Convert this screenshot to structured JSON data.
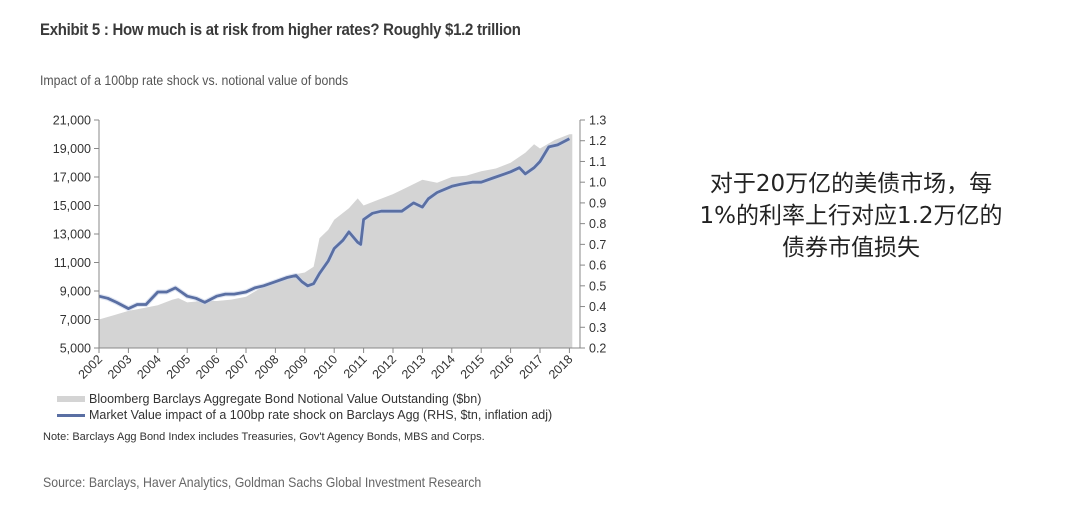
{
  "header": {
    "title": "Exhibit 5 : How much is at risk from higher rates? Roughly $1.2 trillion",
    "subtitle": "Impact of a 100bp rate shock vs. notional value of bonds"
  },
  "legend": {
    "area_label": "Bloomberg Barclays Aggregate Bond Notional Value Outstanding ($bn)",
    "line_label": "Market Value impact of a 100bp rate shock on Barclays Agg (RHS, $tn, inflation adj)"
  },
  "note": "Note: Barclays Agg Bond Index includes Treasuries, Gov't Agency Bonds, MBS and Corps.",
  "source": "Source: Barclays, Haver Analytics, Goldman Sachs Global Investment Research",
  "annotation": {
    "lines": [
      "对于20万亿的美债市场，每",
      "1%的利率上行对应1.2万亿的",
      "债券市值损失"
    ]
  },
  "colors": {
    "area": "#d4d4d4",
    "line": "#5a6fa3",
    "axis": "#888888"
  },
  "chart_data": {
    "type": "area+line",
    "title": "Exhibit 5 : How much is at risk from higher rates? Roughly $1.2 trillion",
    "subtitle": "Impact of a 100bp rate shock vs. notional value of bonds",
    "xlabel": "",
    "x_tick_labels": [
      "2002",
      "2003",
      "2004",
      "2005",
      "2006",
      "2007",
      "2008",
      "2009",
      "2010",
      "2011",
      "2012",
      "2013",
      "2014",
      "2015",
      "2016",
      "2017",
      "2018"
    ],
    "left_axis": {
      "label": "$bn",
      "ylim": [
        5000,
        21000
      ],
      "ticks": [
        5000,
        7000,
        9000,
        11000,
        13000,
        15000,
        17000,
        19000,
        21000
      ],
      "tick_labels": [
        "5,000",
        "7,000",
        "9,000",
        "11,000",
        "13,000",
        "15,000",
        "17,000",
        "19,000",
        "21,000"
      ]
    },
    "right_axis": {
      "label": "$tn",
      "ylim": [
        0.2,
        1.3
      ],
      "ticks": [
        0.2,
        0.3,
        0.4,
        0.5,
        0.6,
        0.7,
        0.8,
        0.9,
        1.0,
        1.1,
        1.2,
        1.3
      ],
      "tick_labels": [
        "0.2",
        "0.3",
        "0.4",
        "0.5",
        "0.6",
        "0.7",
        "0.8",
        "0.9",
        "1.0",
        "1.1",
        "1.2",
        "1.3"
      ]
    },
    "grid": false,
    "legend_position": "bottom",
    "series": [
      {
        "name": "Bloomberg Barclays Aggregate Bond Notional Value Outstanding ($bn)",
        "type": "area",
        "axis": "left",
        "x": [
          2002,
          2002.5,
          2003,
          2003.5,
          2004,
          2004.5,
          2004.7,
          2005,
          2005.5,
          2006,
          2006.5,
          2007,
          2007.5,
          2008,
          2008.5,
          2009,
          2009.3,
          2009.5,
          2009.8,
          2010,
          2010.5,
          2010.8,
          2011,
          2011.5,
          2012,
          2012.5,
          2013,
          2013.5,
          2014,
          2014.5,
          2015,
          2015.5,
          2016,
          2016.5,
          2016.8,
          2017,
          2017.5,
          2018,
          2018.1
        ],
        "values": [
          7000,
          7300,
          7600,
          7800,
          8000,
          8400,
          8500,
          8200,
          8300,
          8300,
          8400,
          8600,
          9200,
          9700,
          10100,
          10300,
          10700,
          12700,
          13300,
          14000,
          14800,
          15500,
          15000,
          15400,
          15800,
          16300,
          16800,
          16600,
          17000,
          17100,
          17400,
          17600,
          18000,
          18700,
          19300,
          19000,
          19600,
          20000,
          20000
        ]
      },
      {
        "name": "Market Value impact of a 100bp rate shock on Barclays Agg (RHS, $tn, inflation adj)",
        "type": "line",
        "axis": "right",
        "x": [
          2002,
          2002.3,
          2002.6,
          2003,
          2003.3,
          2003.6,
          2004,
          2004.3,
          2004.6,
          2004.8,
          2005,
          2005.3,
          2005.6,
          2006,
          2006.3,
          2006.6,
          2007,
          2007.3,
          2007.6,
          2008,
          2008.4,
          2008.7,
          2008.9,
          2009.1,
          2009.3,
          2009.5,
          2009.8,
          2010,
          2010.3,
          2010.5,
          2010.8,
          2010.9,
          2011,
          2011.3,
          2011.6,
          2012,
          2012.3,
          2012.7,
          2013,
          2013.2,
          2013.5,
          2014,
          2014.3,
          2014.7,
          2015,
          2015.4,
          2015.8,
          2016,
          2016.3,
          2016.5,
          2016.8,
          2017,
          2017.3,
          2017.6,
          2018
        ],
        "values": [
          0.45,
          0.44,
          0.42,
          0.39,
          0.41,
          0.41,
          0.47,
          0.47,
          0.49,
          0.47,
          0.45,
          0.44,
          0.42,
          0.45,
          0.46,
          0.46,
          0.47,
          0.49,
          0.5,
          0.52,
          0.54,
          0.55,
          0.52,
          0.5,
          0.51,
          0.56,
          0.62,
          0.68,
          0.72,
          0.76,
          0.71,
          0.7,
          0.82,
          0.85,
          0.86,
          0.86,
          0.86,
          0.9,
          0.88,
          0.92,
          0.95,
          0.98,
          0.99,
          1.0,
          1.0,
          1.02,
          1.04,
          1.05,
          1.07,
          1.04,
          1.07,
          1.1,
          1.17,
          1.18,
          1.21
        ]
      }
    ]
  }
}
